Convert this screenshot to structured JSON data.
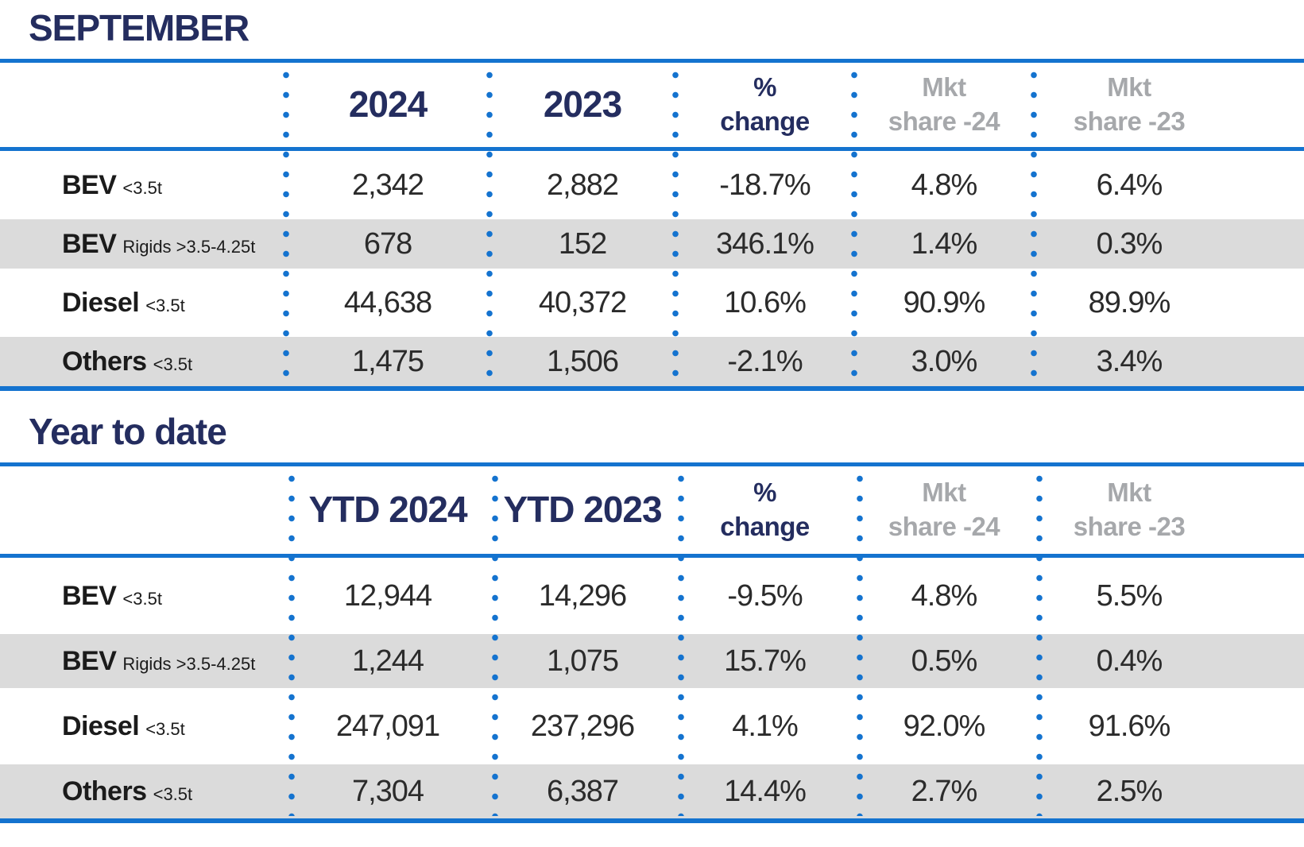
{
  "colors": {
    "blue": "#1473CF",
    "navy": "#242D5F",
    "gray_text": "#A6A8AB",
    "row_shade": "#DBDBDB",
    "value_text": "#2B2B2B"
  },
  "tables": [
    {
      "title": "SEPTEMBER",
      "columns": [
        {
          "label": "2024",
          "lines": [
            "2024"
          ],
          "tone": "navy"
        },
        {
          "label": "2023",
          "lines": [
            "2023"
          ],
          "tone": "navy"
        },
        {
          "label": "% change",
          "lines": [
            "%",
            "change"
          ],
          "tone": "navy"
        },
        {
          "label": "Mkt share -24",
          "lines": [
            "Mkt",
            "share -24"
          ],
          "tone": "gray"
        },
        {
          "label": "Mkt share -23",
          "lines": [
            "Mkt",
            "share -23"
          ],
          "tone": "gray"
        }
      ],
      "rows": [
        {
          "name": "BEV",
          "suffix": "<3.5t",
          "values": [
            "2,342",
            "2,882",
            "-18.7%",
            "4.8%",
            "6.4%"
          ]
        },
        {
          "name": "BEV",
          "suffix": "Rigids >3.5-4.25t",
          "values": [
            "678",
            "152",
            "346.1%",
            "1.4%",
            "0.3%"
          ]
        },
        {
          "name": "Diesel",
          "suffix": "<3.5t",
          "values": [
            "44,638",
            "40,372",
            "10.6%",
            "90.9%",
            "89.9%"
          ]
        },
        {
          "name": "Others",
          "suffix": "<3.5t",
          "values": [
            "1,475",
            "1,506",
            "-2.1%",
            "3.0%",
            "3.4%"
          ]
        }
      ]
    },
    {
      "title": "Year to date",
      "columns": [
        {
          "label": "YTD 2024",
          "lines": [
            "YTD 2024"
          ],
          "tone": "navy"
        },
        {
          "label": "YTD 2023",
          "lines": [
            "YTD 2023"
          ],
          "tone": "navy"
        },
        {
          "label": "% change",
          "lines": [
            "%",
            "change"
          ],
          "tone": "navy"
        },
        {
          "label": "Mkt share -24",
          "lines": [
            "Mkt",
            "share -24"
          ],
          "tone": "gray"
        },
        {
          "label": "Mkt share -23",
          "lines": [
            "Mkt",
            "share -23"
          ],
          "tone": "gray"
        }
      ],
      "rows": [
        {
          "name": "BEV",
          "suffix": "<3.5t",
          "values": [
            "12,944",
            "14,296",
            "-9.5%",
            "4.8%",
            "5.5%"
          ]
        },
        {
          "name": "BEV",
          "suffix": "Rigids >3.5-4.25t",
          "values": [
            "1,244",
            "1,075",
            "15.7%",
            "0.5%",
            "0.4%"
          ]
        },
        {
          "name": "Diesel",
          "suffix": "<3.5t",
          "values": [
            "247,091",
            "237,296",
            "4.1%",
            "92.0%",
            "91.6%"
          ]
        },
        {
          "name": "Others",
          "suffix": "<3.5t",
          "values": [
            "7,304",
            "6,387",
            "14.4%",
            "2.7%",
            "2.5%"
          ]
        }
      ]
    }
  ],
  "chart_data": [
    {
      "type": "table",
      "title": "SEPTEMBER",
      "columns": [
        "",
        "2024",
        "2023",
        "% change",
        "Mkt share -24",
        "Mkt share -23"
      ],
      "rows": [
        [
          "BEV <3.5t",
          2342,
          2882,
          "-18.7%",
          "4.8%",
          "6.4%"
        ],
        [
          "BEV Rigids >3.5-4.25t",
          678,
          152,
          "346.1%",
          "1.4%",
          "0.3%"
        ],
        [
          "Diesel <3.5t",
          44638,
          40372,
          "10.6%",
          "90.9%",
          "89.9%"
        ],
        [
          "Others <3.5t",
          1475,
          1506,
          "-2.1%",
          "3.0%",
          "3.4%"
        ]
      ]
    },
    {
      "type": "table",
      "title": "Year to date",
      "columns": [
        "",
        "YTD 2024",
        "YTD 2023",
        "% change",
        "Mkt share -24",
        "Mkt share -23"
      ],
      "rows": [
        [
          "BEV <3.5t",
          12944,
          14296,
          "-9.5%",
          "4.8%",
          "5.5%"
        ],
        [
          "BEV Rigids >3.5-4.25t",
          1244,
          1075,
          "15.7%",
          "0.5%",
          "0.4%"
        ],
        [
          "Diesel <3.5t",
          247091,
          237296,
          "4.1%",
          "92.0%",
          "91.6%"
        ],
        [
          "Others <3.5t",
          7304,
          6387,
          "14.4%",
          "2.7%",
          "2.5%"
        ]
      ]
    }
  ]
}
